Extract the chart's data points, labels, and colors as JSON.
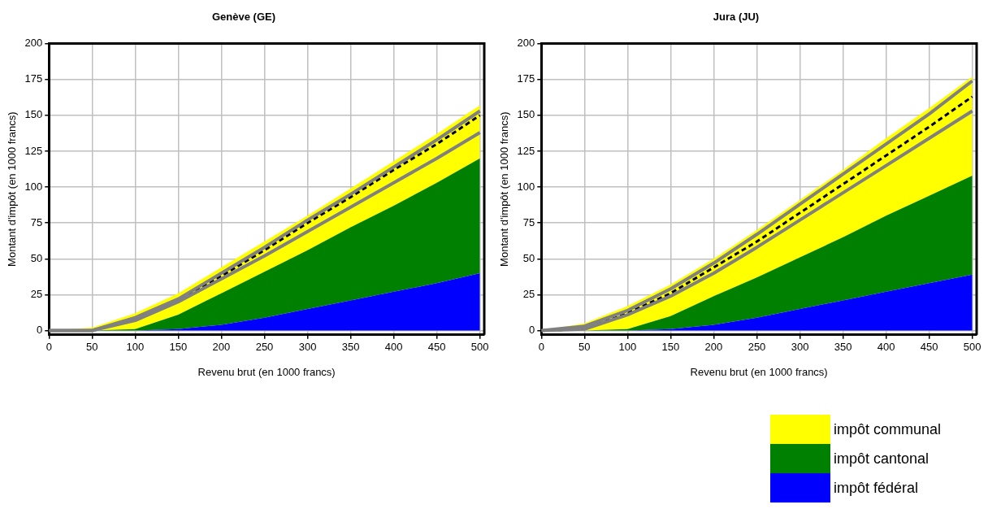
{
  "chart_data": [
    {
      "type": "area",
      "title": "Genève (GE)",
      "xlabel": "Revenu brut (en 1000 francs)",
      "ylabel": "Montant d'impôt (en 1000 francs)",
      "x": [
        0,
        50,
        100,
        150,
        200,
        250,
        300,
        350,
        400,
        450,
        500
      ],
      "stacked": true,
      "series": [
        {
          "color": "#0000ff",
          "values": [
            0,
            0,
            0,
            1,
            4,
            9,
            15,
            21,
            27,
            33,
            40
          ]
        },
        {
          "color": "#008000",
          "values": [
            0,
            0,
            1,
            10,
            22,
            32,
            41,
            51,
            60,
            70,
            80
          ]
        },
        {
          "color": "#ffff00",
          "values": [
            0,
            2,
            11,
            15,
            18,
            21,
            24,
            27,
            31,
            34,
            37
          ]
        },
        {
          "type": "line",
          "color": "#808080",
          "values": [
            0,
            0,
            9,
            22,
            40,
            58,
            77,
            95,
            114,
            133,
            153
          ]
        },
        {
          "type": "line",
          "color": "#808080",
          "values": [
            0,
            0,
            7,
            20,
            36,
            52,
            69,
            86,
            103,
            120,
            138
          ]
        },
        {
          "type": "line",
          "color": "#000000",
          "line_style": "dashed",
          "values": [
            0,
            0,
            8,
            21,
            38,
            56,
            75,
            93,
            112,
            130,
            150
          ]
        }
      ],
      "xlim": [
        0,
        505
      ],
      "xticks": [
        0,
        50,
        100,
        150,
        200,
        250,
        300,
        350,
        400,
        450,
        500
      ],
      "ylim": [
        -3,
        200
      ],
      "yticks": [
        0,
        25,
        50,
        75,
        100,
        125,
        150,
        175,
        200
      ],
      "grid": true,
      "legend": false
    },
    {
      "type": "area",
      "title": "Jura (JU)",
      "xlabel": "Revenu brut (en 1000 francs)",
      "ylabel": "Montant d'impôt (en 1000 francs)",
      "x": [
        0,
        50,
        100,
        150,
        200,
        250,
        300,
        350,
        400,
        450,
        500
      ],
      "stacked": true,
      "series": [
        {
          "name": "impôt fédéral",
          "color": "#0000ff",
          "values": [
            0,
            0,
            0,
            1,
            4,
            9,
            15,
            21,
            27,
            33,
            39
          ]
        },
        {
          "name": "impôt cantonal",
          "color": "#008000",
          "values": [
            0,
            0,
            1,
            9,
            20,
            28,
            36,
            44,
            53,
            61,
            69
          ]
        },
        {
          "name": "impôt communal",
          "color": "#ffff00",
          "values": [
            0,
            5,
            16,
            22,
            26,
            33,
            40,
            47,
            54,
            61,
            69
          ]
        },
        {
          "type": "line",
          "color": "#808080",
          "values": [
            0,
            3,
            14,
            29,
            47,
            67,
            88,
            109,
            130,
            151,
            174
          ]
        },
        {
          "type": "line",
          "color": "#808080",
          "values": [
            0,
            1,
            11,
            24,
            40,
            58,
            77,
            96,
            115,
            134,
            153
          ]
        },
        {
          "type": "line",
          "color": "#000000",
          "line_style": "dashed",
          "values": [
            0,
            1,
            12,
            26,
            44,
            62,
            82,
            102,
            122,
            142,
            163
          ]
        }
      ],
      "xlim": [
        0,
        505
      ],
      "xticks": [
        0,
        50,
        100,
        150,
        200,
        250,
        300,
        350,
        400,
        450,
        500
      ],
      "ylim": [
        -3,
        200
      ],
      "yticks": [
        0,
        25,
        50,
        75,
        100,
        125,
        150,
        175,
        200
      ],
      "grid": true,
      "legend": "bottom right"
    }
  ]
}
